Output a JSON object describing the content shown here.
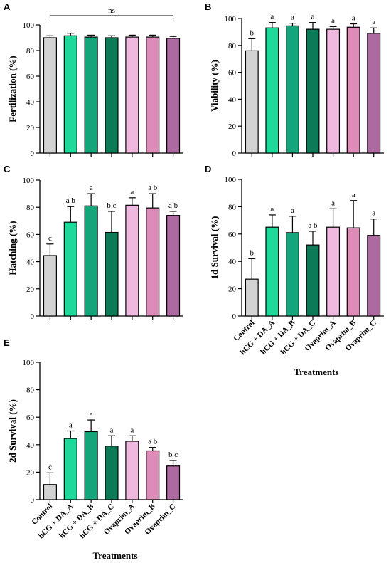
{
  "colors": [
    "#d3d3d3",
    "#1fd99a",
    "#14a57a",
    "#0c7a56",
    "#efb9df",
    "#dc8cb7",
    "#ad6aa0"
  ],
  "chart_data": [
    {
      "type": "bar",
      "panel": "A",
      "ylabel": "Fertilization (%)",
      "xlabel": "",
      "ylim": [
        0,
        100
      ],
      "yticks": [
        0,
        20,
        40,
        60,
        80,
        100
      ],
      "categories": [
        "Control",
        "hCG + DA_A",
        "hCG + DA_B",
        "hCG + DA_C",
        "Ovaprim_A",
        "Ovaprim_B",
        "Ovaprim_C"
      ],
      "show_category_labels": false,
      "values": [
        90,
        91.5,
        90.5,
        90,
        90.5,
        90.5,
        89.5
      ],
      "errors": [
        1.5,
        2,
        1.5,
        1.5,
        1.5,
        1.5,
        1.5
      ],
      "letters": [],
      "bracket_label": "ns"
    },
    {
      "type": "bar",
      "panel": "B",
      "ylabel": "Viability (%)",
      "xlabel": "",
      "ylim": [
        0,
        100
      ],
      "yticks": [
        0,
        20,
        40,
        60,
        80,
        100
      ],
      "categories": [
        "Control",
        "hCG + DA_A",
        "hCG + DA_B",
        "hCG + DA_C",
        "Ovaprim_A",
        "Ovaprim_B",
        "Ovaprim_C"
      ],
      "show_category_labels": false,
      "values": [
        76,
        93,
        94.5,
        92,
        92,
        93.5,
        89
      ],
      "errors": [
        9,
        4,
        2,
        5,
        2,
        2.5,
        4
      ],
      "letters": [
        "b",
        "a",
        "a",
        "a",
        "a",
        "a",
        "a"
      ]
    },
    {
      "type": "bar",
      "panel": "C",
      "ylabel": "Hatching (%)",
      "xlabel": "",
      "ylim": [
        0,
        100
      ],
      "yticks": [
        0,
        20,
        40,
        60,
        80,
        100
      ],
      "categories": [
        "Control",
        "hCG + DA_A",
        "hCG + DA_B",
        "hCG + DA_C",
        "Ovaprim_A",
        "Ovaprim_B",
        "Ovaprim_C"
      ],
      "show_category_labels": false,
      "values": [
        44.5,
        69,
        81,
        61.5,
        81.5,
        79.5,
        74
      ],
      "errors": [
        8.5,
        11.5,
        9,
        15.5,
        5.5,
        10.5,
        3
      ],
      "letters": [
        "c",
        "a b",
        "a",
        "b c",
        "a",
        "a b",
        "a b"
      ]
    },
    {
      "type": "bar",
      "panel": "D",
      "ylabel": "1d Survival (%)",
      "xlabel": "Treatments",
      "ylim": [
        0,
        100
      ],
      "yticks": [
        0,
        20,
        40,
        60,
        80,
        100
      ],
      "categories": [
        "Control",
        "hCG + DA_A",
        "hCG + DA_B",
        "hCG + DA_C",
        "Ovaprim_A",
        "Ovaprim_B",
        "Ovaprim_C"
      ],
      "show_category_labels": true,
      "values": [
        27,
        65,
        61,
        52,
        65,
        64.5,
        59
      ],
      "errors": [
        15,
        9,
        12,
        10,
        13.5,
        20,
        12
      ],
      "letters": [
        "b",
        "a",
        "a",
        "a b",
        "a",
        "a",
        "a"
      ]
    },
    {
      "type": "bar",
      "panel": "E",
      "ylabel": "2d Survival (%)",
      "xlabel": "Treatments",
      "ylim": [
        0,
        100
      ],
      "yticks": [
        0,
        20,
        40,
        60,
        80,
        100
      ],
      "categories": [
        "Control",
        "hCG + DA_A",
        "hCG + DA_B",
        "hCG + DA_C",
        "Ovaprim_A",
        "Ovaprim_B",
        "Ovaprim_C"
      ],
      "show_category_labels": true,
      "values": [
        11,
        44.5,
        49.5,
        39,
        42.5,
        35.5,
        24.5
      ],
      "errors": [
        8.5,
        5.5,
        8.5,
        7.5,
        4,
        2.5,
        4
      ],
      "letters": [
        "c",
        "a",
        "a",
        "a",
        "a",
        "a b",
        "b c"
      ]
    }
  ]
}
